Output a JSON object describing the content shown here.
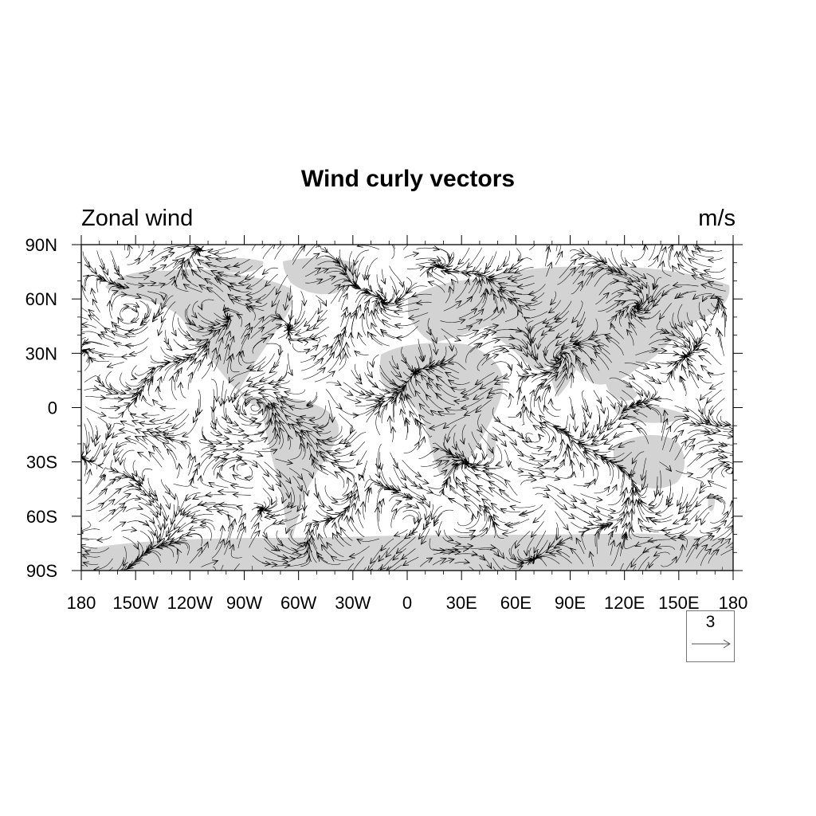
{
  "title": "Wind curly vectors",
  "left_string": "Zonal wind",
  "right_string": "m/s",
  "map": {
    "projection": "cylindrical equidistant",
    "lon_range": [
      -180,
      180
    ],
    "lat_range": [
      -90,
      90
    ],
    "land_color": "#d3d3d3",
    "vector_color": "#000000",
    "vector_style": "curly streamlines with arrowheads"
  },
  "lon_tick_labels": [
    "180",
    "150W",
    "120W",
    "90W",
    "60W",
    "30W",
    "0",
    "30E",
    "60E",
    "90E",
    "120E",
    "150E",
    "180"
  ],
  "lat_tick_labels": [
    "90N",
    "60N",
    "30N",
    "0",
    "30S",
    "60S",
    "90S"
  ],
  "reference_vector": {
    "value": "3"
  }
}
